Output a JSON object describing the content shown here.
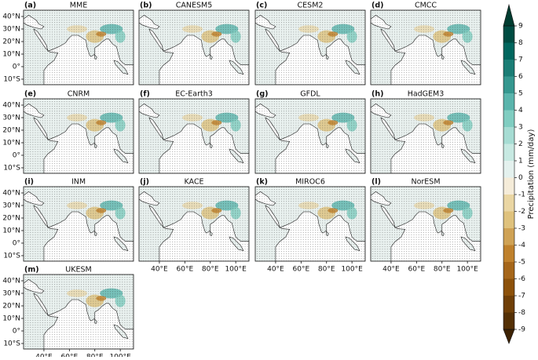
{
  "panels": [
    {
      "label": "(a)",
      "title": "MME"
    },
    {
      "label": "(b)",
      "title": "CANESM5"
    },
    {
      "label": "(c)",
      "title": "CESM2"
    },
    {
      "label": "(d)",
      "title": "CMCC"
    },
    {
      "label": "(e)",
      "title": "CNRM"
    },
    {
      "label": "(f)",
      "title": "EC-Earth3"
    },
    {
      "label": "(g)",
      "title": "GFDL"
    },
    {
      "label": "(h)",
      "title": "HadGEM3"
    },
    {
      "label": "(i)",
      "title": "INM"
    },
    {
      "label": "(j)",
      "title": "KACE"
    },
    {
      "label": "(k)",
      "title": "MIROC6"
    },
    {
      "label": "(l)",
      "title": "NorESM"
    },
    {
      "label": "(m)",
      "title": "UKESM"
    }
  ],
  "lat_ticks": [
    {
      "value": 40,
      "label": "40°N"
    },
    {
      "value": 30,
      "label": "30°N"
    },
    {
      "value": 20,
      "label": "20°N"
    },
    {
      "value": 10,
      "label": "10°N"
    },
    {
      "value": 0,
      "label": "0°"
    },
    {
      "value": -10,
      "label": "10°S"
    }
  ],
  "lon_ticks": [
    {
      "value": 40,
      "label": "40°E"
    },
    {
      "value": 60,
      "label": "60°E"
    },
    {
      "value": 80,
      "label": "80°E"
    },
    {
      "value": 100,
      "label": "100°E"
    }
  ],
  "colorbar": {
    "label": "Precipitation (mm/day)",
    "ticks": [
      9,
      8,
      7,
      6,
      5,
      4,
      3,
      2,
      1,
      0,
      -1,
      -2,
      -3,
      -4,
      -5,
      -6,
      -7,
      -8,
      -9
    ],
    "colors": [
      "#543005",
      "#6f3f07",
      "#8c510a",
      "#a5661a",
      "#bf812d",
      "#cfa255",
      "#dfc27d",
      "#ead6a3",
      "#f5ecd9",
      "#e4f1ee",
      "#c7e9e2",
      "#a6dcd3",
      "#80cdc1",
      "#5ab4ac",
      "#35978f",
      "#1b7d75",
      "#01665e",
      "#004c42"
    ],
    "extend_colors": [
      "#3d2203",
      "#003c30"
    ]
  }
}
